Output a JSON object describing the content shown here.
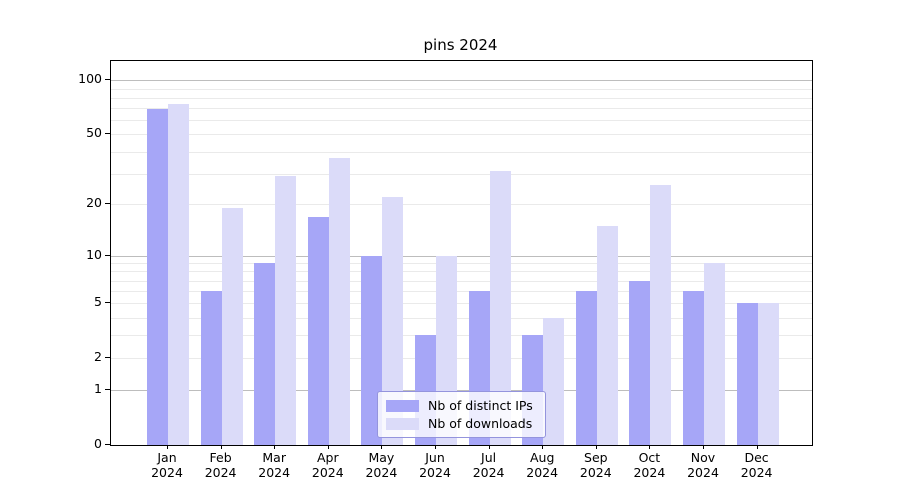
{
  "chart_data": {
    "type": "bar",
    "title": "pins 2024",
    "categories": [
      "Jan",
      "Feb",
      "Mar",
      "Apr",
      "May",
      "Jun",
      "Jul",
      "Aug",
      "Sep",
      "Oct",
      "Nov",
      "Dec"
    ],
    "category_year": "2024",
    "series": [
      {
        "name": "Nb of distinct IPs",
        "color": "#a6a6f7",
        "values": [
          69,
          6,
          9,
          17,
          10,
          3,
          6,
          3,
          6,
          7,
          6,
          5
        ]
      },
      {
        "name": "Nb of downloads",
        "color": "#dbdbf9",
        "values": [
          74,
          19,
          29,
          37,
          22,
          10,
          31,
          4,
          15,
          26,
          9,
          5
        ]
      }
    ],
    "yscale": "log1p",
    "ylim": [
      0,
      128
    ],
    "yticks": [
      100,
      50,
      20,
      10,
      5,
      2,
      1,
      0
    ],
    "major_gridlines": [
      100,
      10,
      1
    ],
    "minor_gridlines": [
      2,
      3,
      4,
      5,
      6,
      7,
      8,
      9,
      20,
      30,
      40,
      50,
      60,
      70,
      80,
      90
    ],
    "grid": true,
    "legend_position": "lower-center-inside",
    "axis_color": "#000000",
    "major_grid_color": "#bdbdbd",
    "minor_grid_color": "#eaeaea",
    "background_color": "#ffffff"
  }
}
